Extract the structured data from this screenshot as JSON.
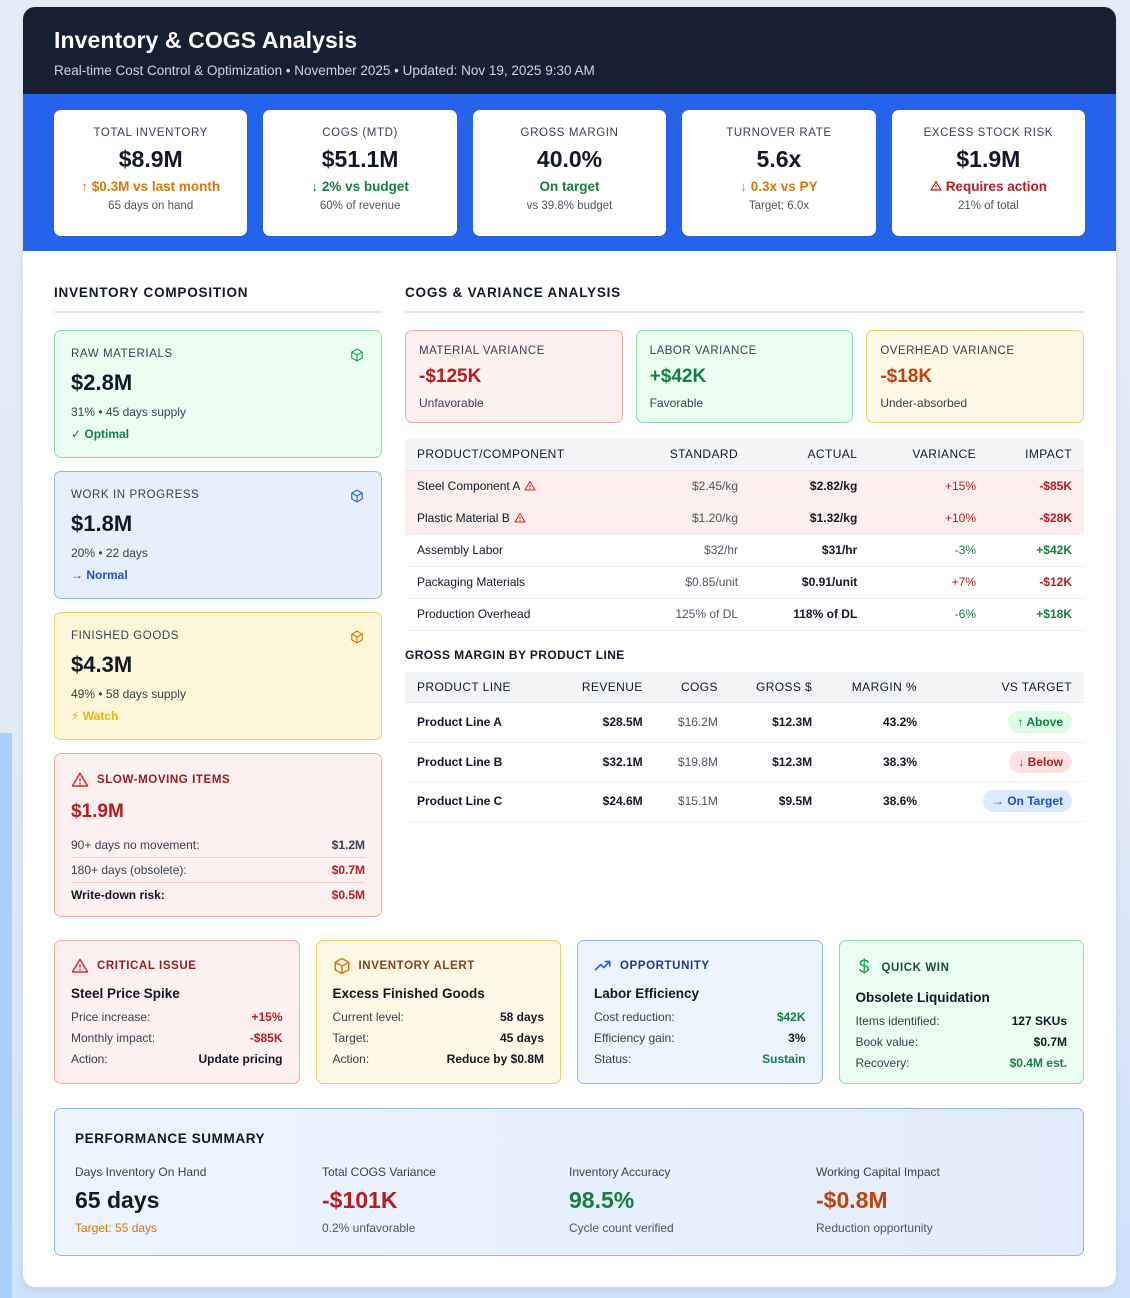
{
  "header": {
    "title": "Inventory & COGS Analysis",
    "subtitle": "Real-time Cost Control & Optimization • November 2025 • Updated: Nov 19, 2025 9:30 AM"
  },
  "kpis": [
    {
      "label": "TOTAL INVENTORY",
      "value": "$8.9M",
      "change": "↑ $0.3M vs last month",
      "note": "65 days on hand"
    },
    {
      "label": "COGS (MTD)",
      "value": "$51.1M",
      "change": "↓ 2% vs budget",
      "note": "60% of revenue"
    },
    {
      "label": "GROSS MARGIN",
      "value": "40.0%",
      "change": "On target",
      "note": "vs 39.8% budget"
    },
    {
      "label": "TURNOVER RATE",
      "value": "5.6x",
      "change": "↓ 0.3x vs PY",
      "note": "Target: 6.0x"
    },
    {
      "label": "EXCESS STOCK RISK",
      "value": "$1.9M",
      "change": "Requires action",
      "note": "21% of total"
    }
  ],
  "composition": {
    "title": "INVENTORY COMPOSITION",
    "raw": {
      "label": "RAW MATERIALS",
      "value": "$2.8M",
      "detail": "31% • 45 days supply",
      "status": "✓ Optimal",
      "icon": "cube-icon"
    },
    "wip": {
      "label": "WORK IN PROGRESS",
      "value": "$1.8M",
      "detail": "20% • 22 days",
      "status": "→ Normal",
      "icon": "cube-icon"
    },
    "fg": {
      "label": "FINISHED GOODS",
      "value": "$4.3M",
      "detail": "49% • 58 days supply",
      "status": "⚡ Watch",
      "icon": "cube-icon"
    },
    "slow": {
      "label": "SLOW-MOVING ITEMS",
      "value": "$1.9M",
      "rows": [
        {
          "label": "90+ days no movement:",
          "value": "$1.2M"
        },
        {
          "label": "180+ days (obsolete):",
          "value": "$0.7M"
        },
        {
          "label": "Write-down risk:",
          "value": "$0.5M"
        }
      ]
    }
  },
  "cogs": {
    "title": "COGS & VARIANCE ANALYSIS",
    "variances": [
      {
        "label": "MATERIAL VARIANCE",
        "value": "-$125K",
        "status": "Unfavorable"
      },
      {
        "label": "LABOR VARIANCE",
        "value": "+$42K",
        "status": "Favorable"
      },
      {
        "label": "OVERHEAD VARIANCE",
        "value": "-$18K",
        "status": "Under-absorbed"
      }
    ],
    "table_headers": [
      "PRODUCT/COMPONENT",
      "STANDARD",
      "ACTUAL",
      "VARIANCE",
      "IMPACT"
    ],
    "rows": [
      {
        "name": "Steel Component A",
        "standard": "$2.45/kg",
        "actual": "$2.82/kg",
        "variance": "+15%",
        "impact": "-$85K"
      },
      {
        "name": "Plastic Material B",
        "standard": "$1.20/kg",
        "actual": "$1.32/kg",
        "variance": "+10%",
        "impact": "-$28K"
      },
      {
        "name": "Assembly Labor",
        "standard": "$32/hr",
        "actual": "$31/hr",
        "variance": "-3%",
        "impact": "+$42K"
      },
      {
        "name": "Packaging Materials",
        "standard": "$0.85/unit",
        "actual": "$0.91/unit",
        "variance": "+7%",
        "impact": "-$12K"
      },
      {
        "name": "Production Overhead",
        "standard": "125% of DL",
        "actual": "118% of DL",
        "variance": "-6%",
        "impact": "+$18K"
      }
    ]
  },
  "gross_margin": {
    "title": "GROSS MARGIN BY PRODUCT LINE",
    "headers": [
      "PRODUCT LINE",
      "REVENUE",
      "COGS",
      "GROSS $",
      "MARGIN %",
      "VS TARGET"
    ],
    "rows": [
      {
        "line": "Product Line A",
        "revenue": "$28.5M",
        "cogs": "$16.2M",
        "gross": "$12.3M",
        "margin": "43.2%",
        "vs": "↑ Above"
      },
      {
        "line": "Product Line B",
        "revenue": "$32.1M",
        "cogs": "$19.8M",
        "gross": "$12.3M",
        "margin": "38.3%",
        "vs": "↓ Below"
      },
      {
        "line": "Product Line C",
        "revenue": "$24.6M",
        "cogs": "$15.1M",
        "gross": "$9.5M",
        "margin": "38.6%",
        "vs": "→ On Target"
      }
    ]
  },
  "insights": [
    {
      "tag": "CRITICAL ISSUE",
      "title": "Steel Price Spike",
      "rows": [
        {
          "label": "Price increase:",
          "value": "+15%"
        },
        {
          "label": "Monthly impact:",
          "value": "-$85K"
        },
        {
          "label": "Action:",
          "value": "Update pricing"
        }
      ]
    },
    {
      "tag": "INVENTORY ALERT",
      "title": "Excess Finished Goods",
      "rows": [
        {
          "label": "Current level:",
          "value": "58 days"
        },
        {
          "label": "Target:",
          "value": "45 days"
        },
        {
          "label": "Action:",
          "value": "Reduce by $0.8M"
        }
      ]
    },
    {
      "tag": "OPPORTUNITY",
      "title": "Labor Efficiency",
      "rows": [
        {
          "label": "Cost reduction:",
          "value": "$42K"
        },
        {
          "label": "Efficiency gain:",
          "value": "3%"
        },
        {
          "label": "Status:",
          "value": "Sustain"
        }
      ]
    },
    {
      "tag": "QUICK WIN",
      "title": "Obsolete Liquidation",
      "rows": [
        {
          "label": "Items identified:",
          "value": "127 SKUs"
        },
        {
          "label": "Book value:",
          "value": "$0.7M"
        },
        {
          "label": "Recovery:",
          "value": "$0.4M est."
        }
      ]
    }
  ],
  "performance": {
    "title": "PERFORMANCE SUMMARY",
    "items": [
      {
        "label": "Days Inventory On Hand",
        "value": "65 days",
        "note": "Target: 55 days"
      },
      {
        "label": "Total COGS Variance",
        "value": "-$101K",
        "note": "0.2% unfavorable"
      },
      {
        "label": "Inventory Accuracy",
        "value": "98.5%",
        "note": "Cycle count verified"
      },
      {
        "label": "Working Capital Impact",
        "value": "-$0.8M",
        "note": "Reduction opportunity"
      }
    ]
  }
}
